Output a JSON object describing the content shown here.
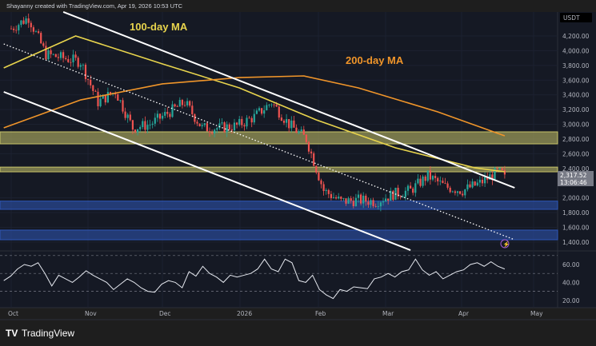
{
  "header": {
    "credit": "Shayanny created with TradingView.com, Apr 19, 2026 10:53 UTC"
  },
  "footer": {
    "logo_text": "TradingView"
  },
  "chart_data": [
    {
      "type": "candlestick",
      "currency": "USDT",
      "x_ticks": [
        "Oct",
        "Nov",
        "Dec",
        "2026",
        "Feb",
        "Mar",
        "Apr",
        "May"
      ],
      "y_ticks": [
        "4,200.00",
        "4,000.00",
        "3,800.00",
        "3,600.00",
        "3,400.00",
        "3,200.00",
        "3,000.00",
        "2,800.00",
        "2,600.00",
        "2,400.00",
        "2,000.00",
        "1,800.00",
        "1,600.00",
        "1,400.00"
      ],
      "ylim": [
        1300,
        4550
      ],
      "grid": true,
      "last_price": "2,317.52",
      "countdown": "13:06:46",
      "weekly_close_approx": [
        [
          "2025-10-01",
          4300
        ],
        [
          "2025-10-08",
          4450
        ],
        [
          "2025-10-15",
          3950
        ],
        [
          "2025-10-22",
          3900
        ],
        [
          "2025-10-29",
          3850
        ],
        [
          "2025-11-05",
          3300
        ],
        [
          "2025-11-12",
          3450
        ],
        [
          "2025-11-19",
          2950
        ],
        [
          "2025-11-26",
          3000
        ],
        [
          "2025-12-03",
          3150
        ],
        [
          "2025-12-10",
          3300
        ],
        [
          "2025-12-17",
          2950
        ],
        [
          "2025-12-24",
          2950
        ],
        [
          "2025-12-31",
          2980
        ],
        [
          "2026-01-07",
          3100
        ],
        [
          "2026-01-14",
          3300
        ],
        [
          "2026-01-21",
          3000
        ],
        [
          "2026-01-28",
          2800
        ],
        [
          "2026-02-04",
          2100
        ],
        [
          "2026-02-11",
          1950
        ],
        [
          "2026-02-18",
          1970
        ],
        [
          "2026-02-25",
          1950
        ],
        [
          "2026-03-04",
          2050
        ],
        [
          "2026-03-11",
          2100
        ],
        [
          "2026-03-18",
          2300
        ],
        [
          "2026-03-25",
          2150
        ],
        [
          "2026-04-01",
          2100
        ],
        [
          "2026-04-08",
          2200
        ],
        [
          "2026-04-15",
          2350
        ],
        [
          "2026-04-18",
          2317.52
        ]
      ],
      "moving_averages": [
        {
          "name": "100-day MA",
          "color": "#e8d44d",
          "points": [
            [
              "2025-09-28",
              3766
            ],
            [
              "2025-10-27",
              4200
            ],
            [
              "2025-12-01",
              3820
            ],
            [
              "2026-01-01",
              3494
            ],
            [
              "2026-02-01",
              3060
            ],
            [
              "2026-03-05",
              2680
            ],
            [
              "2026-04-06",
              2408
            ],
            [
              "2026-04-18",
              2354
            ]
          ]
        },
        {
          "name": "200-day MA",
          "color": "#f0952a",
          "points": [
            [
              "2025-09-28",
              2951
            ],
            [
              "2025-10-29",
              3331
            ],
            [
              "2025-12-01",
              3549
            ],
            [
              "2026-01-01",
              3635
            ],
            [
              "2026-01-27",
              3657
            ],
            [
              "2026-02-18",
              3494
            ],
            [
              "2026-03-22",
              3169
            ],
            [
              "2026-04-18",
              2843
            ]
          ]
        }
      ],
      "trendlines": [
        {
          "style": "solid",
          "color": "#ffffff",
          "from": [
            "2025-10-22",
            4526
          ],
          "to": [
            "2026-04-22",
            2137
          ]
        },
        {
          "style": "solid",
          "color": "#ffffff",
          "from": [
            "2025-09-28",
            3440
          ],
          "to": [
            "2026-03-11",
            1290
          ]
        },
        {
          "style": "dotted",
          "color": "#ffffff",
          "from": [
            "2025-09-28",
            4091
          ],
          "to": [
            "2026-04-22",
            1431
          ]
        }
      ],
      "zones": [
        {
          "color": "#c8c46a",
          "low": 2734,
          "high": 2897
        },
        {
          "color": "#c8c46a",
          "low": 2354,
          "high": 2418
        },
        {
          "color": "#2f57b8",
          "low": 1844,
          "high": 1956
        },
        {
          "color": "#2f57b8",
          "low": 1431,
          "high": 1562
        }
      ]
    },
    {
      "type": "line",
      "indicator": "RSI",
      "y_ticks": [
        "60.00",
        "40.00",
        "20.00"
      ],
      "levels": [
        70,
        50,
        30
      ],
      "color": "#e6e9f0",
      "start": "2025-09-28",
      "end": "2026-04-18",
      "values": [
        42,
        47,
        55,
        60,
        58,
        62,
        50,
        36,
        48,
        44,
        40,
        46,
        53,
        48,
        44,
        40,
        32,
        38,
        44,
        40,
        34,
        30,
        29,
        38,
        42,
        40,
        34,
        52,
        47,
        58,
        50,
        46,
        40,
        48,
        46,
        48,
        50,
        55,
        66,
        55,
        52,
        66,
        62,
        42,
        40,
        48,
        32,
        26,
        22,
        32,
        30,
        35,
        34,
        33,
        44,
        46,
        50,
        46,
        52,
        54,
        66,
        54,
        48,
        52,
        44,
        48,
        52,
        54,
        60,
        62,
        58,
        63,
        58,
        55
      ]
    }
  ]
}
